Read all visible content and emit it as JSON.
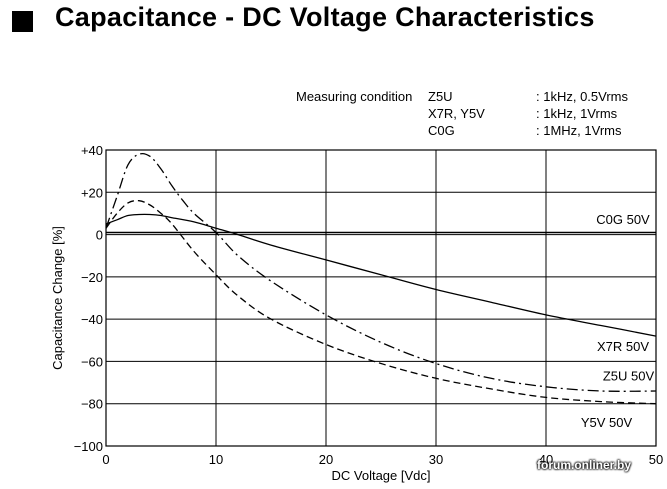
{
  "title": "Capacitance - DC Voltage Characteristics",
  "measuring_condition": {
    "label": "Measuring condition",
    "rows": [
      {
        "material": "Z5U",
        "condition": ": 1kHz, 0.5Vrms"
      },
      {
        "material": "X7R, Y5V",
        "condition": ": 1kHz, 1Vrms"
      },
      {
        "material": "C0G",
        "condition": ": 1MHz, 1Vrms"
      }
    ]
  },
  "watermark": "forum.onliner.by",
  "chart_data": {
    "type": "line",
    "title": "Capacitance - DC Voltage Characteristics",
    "xlabel": "DC Voltage [Vdc]",
    "ylabel": "Capacitance Change [%]",
    "xlim": [
      0,
      50
    ],
    "ylim": [
      -100,
      40
    ],
    "xticks": [
      0,
      10,
      20,
      30,
      40,
      50
    ],
    "yticks": [
      40,
      20,
      0,
      -20,
      -40,
      -60,
      -80,
      -100
    ],
    "ytick_labels": [
      "+40",
      "+20",
      "0",
      "−20",
      "−40",
      "−60",
      "−80",
      "−100"
    ],
    "xtick_labels": [
      "0",
      "10",
      "20",
      "30",
      "40",
      "50"
    ],
    "grid": true,
    "series": [
      {
        "name": "C0G 50V",
        "style": "solid",
        "label_at": [
          47,
          5
        ],
        "x": [
          0,
          10,
          20,
          30,
          40,
          50
        ],
        "y": [
          1,
          1,
          1,
          1,
          1,
          1
        ]
      },
      {
        "name": "X7R 50V",
        "style": "solid",
        "label_at": [
          47,
          -55
        ],
        "x": [
          0,
          1,
          2,
          3,
          4,
          5,
          6,
          8,
          10,
          12,
          15,
          20,
          25,
          30,
          35,
          40,
          45,
          50
        ],
        "y": [
          5,
          7,
          9,
          9.5,
          9.5,
          9,
          8,
          6,
          3,
          0,
          -5,
          -12,
          -19,
          -26,
          -32,
          -38,
          -43,
          -48
        ]
      },
      {
        "name": "Y5V 50V",
        "style": "dashed",
        "label_at": [
          45.5,
          -91
        ],
        "x": [
          0,
          1,
          2,
          3,
          4,
          5,
          6,
          8,
          10,
          12,
          15,
          20,
          25,
          30,
          35,
          40,
          45,
          50
        ],
        "y": [
          3,
          10,
          15,
          16,
          14,
          10,
          5,
          -8,
          -19,
          -29,
          -40,
          -52,
          -61,
          -68,
          -73,
          -77,
          -79,
          -80
        ]
      },
      {
        "name": "Z5U 50V",
        "style": "dashdot",
        "label_at": [
          47.5,
          -69
        ],
        "x": [
          0,
          1,
          2,
          3,
          4,
          5,
          6,
          7,
          8,
          10,
          12,
          15,
          20,
          25,
          30,
          35,
          40,
          45,
          50
        ],
        "y": [
          3,
          18,
          33,
          38,
          37,
          31,
          23,
          16,
          10,
          1,
          -10,
          -22,
          -38,
          -51,
          -61,
          -68,
          -72,
          -74,
          -74
        ]
      }
    ]
  }
}
